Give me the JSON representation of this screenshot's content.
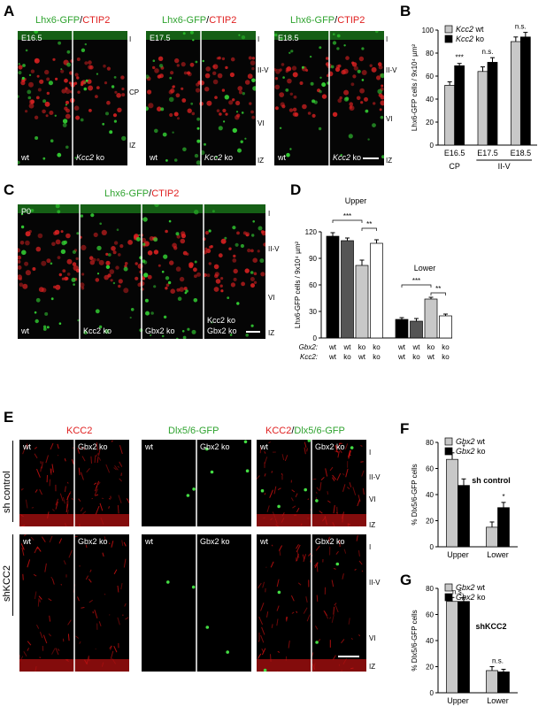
{
  "panel_letters": {
    "A": "A",
    "B": "B",
    "C": "C",
    "D": "D",
    "E": "E",
    "F": "F",
    "G": "G"
  },
  "panelA": {
    "title_green": "Lhx6-GFP",
    "title_sep": "/",
    "title_red": "CTIP2",
    "stages": [
      "E16.5",
      "E17.5",
      "E18.5"
    ],
    "wt": "wt",
    "ko_gene": "Kcc2",
    "ko_suffix": " ko",
    "layers_1": [
      "I",
      "CP",
      "IZ"
    ],
    "layers_2": [
      "I",
      "II-V",
      "VI",
      "IZ"
    ],
    "layers_3": [
      "I",
      "II-V",
      "VI",
      "IZ"
    ]
  },
  "panelC": {
    "title_green": "Lhx6-GFP",
    "title_sep": "/",
    "title_red": "CTIP2",
    "stage": "P0",
    "labels": [
      "wt",
      "Kcc2 ko",
      "Gbx2 ko",
      "Kcc2 ko",
      "Gbx2 ko"
    ],
    "layers": [
      "I",
      "II-V",
      "VI",
      "IZ"
    ]
  },
  "panelE": {
    "titles": [
      "KCC2",
      "Dlx5/6-GFP",
      "KCC2/Dlx5/6-GFP"
    ],
    "rows": [
      "sh control",
      "shKCC2"
    ],
    "wt": "wt",
    "ko": "Gbx2 ko",
    "layers": [
      "I",
      "II-V",
      "VI",
      "IZ"
    ]
  },
  "colors": {
    "green": "#2fa32f",
    "red": "#e02020",
    "bar_wt": "#c8c8c8",
    "bar_ko": "#000000"
  },
  "chart_data": [
    {
      "id": "B",
      "type": "bar",
      "ylabel": "Lhx6-GFP cells / 9x10⁴ µm²",
      "ylim": [
        0,
        100
      ],
      "yticks": [
        0,
        20,
        40,
        60,
        80,
        100
      ],
      "categories": [
        "E16.5",
        "E17.5",
        "E18.5"
      ],
      "groups": [
        {
          "label": "CP",
          "span": [
            0,
            0
          ]
        },
        {
          "label": "II-V",
          "span": [
            1,
            2
          ]
        }
      ],
      "legend": [
        "Kcc2 wt",
        "Kcc2 ko"
      ],
      "series": [
        {
          "name": "Kcc2 wt",
          "values": [
            52,
            64,
            90
          ],
          "errors": [
            3,
            4,
            4
          ]
        },
        {
          "name": "Kcc2 ko",
          "values": [
            69,
            72,
            94
          ],
          "errors": [
            2,
            4,
            4
          ]
        }
      ],
      "significance": [
        "***",
        "n.s.",
        "n.s."
      ]
    },
    {
      "id": "D",
      "type": "bar",
      "ylabel": "Lhx6-GFP cells / 9x10⁴ µm²",
      "ylim": [
        0,
        120
      ],
      "yticks": [
        0,
        30,
        60,
        90,
        120
      ],
      "groups": [
        "Upper",
        "Lower"
      ],
      "row_labels": [
        "Gbx2:",
        "Kcc2:"
      ],
      "gbx2": [
        "wt",
        "wt",
        "ko",
        "ko"
      ],
      "kcc2": [
        "wt",
        "ko",
        "wt",
        "ko"
      ],
      "bar_colors": [
        "#000000",
        "#555555",
        "#c8c8c8",
        "#ffffff"
      ],
      "upper": {
        "values": [
          115,
          110,
          82,
          107
        ],
        "errors": [
          4,
          3,
          6,
          4
        ]
      },
      "lower": {
        "values": [
          21,
          19,
          44,
          25
        ],
        "errors": [
          2,
          3,
          2,
          2
        ]
      },
      "significance": [
        "***",
        "**",
        "***",
        "**"
      ]
    },
    {
      "id": "F",
      "type": "bar",
      "ylabel": "% Dlx5/6-GFP cells",
      "ylim": [
        0,
        80
      ],
      "yticks": [
        0,
        20,
        40,
        60,
        80
      ],
      "categories": [
        "Upper",
        "Lower"
      ],
      "legend": [
        "Gbx2 wt",
        "Gbx2 ko"
      ],
      "annotation": "sh control",
      "series": [
        {
          "name": "Gbx2 wt",
          "values": [
            67,
            15
          ],
          "errors": [
            5,
            4
          ]
        },
        {
          "name": "Gbx2 ko",
          "values": [
            47,
            30
          ],
          "errors": [
            5,
            4
          ]
        }
      ],
      "significance": [
        "*",
        "*"
      ]
    },
    {
      "id": "G",
      "type": "bar",
      "ylabel": "% Dlx5/6-GFP cells",
      "ylim": [
        0,
        80
      ],
      "yticks": [
        0,
        20,
        40,
        60,
        80
      ],
      "categories": [
        "Upper",
        "Lower"
      ],
      "legend": [
        "Gbx2 wt",
        "Gbx2 ko"
      ],
      "annotation": "shKCC2",
      "series": [
        {
          "name": "Gbx2 wt",
          "values": [
            70,
            17
          ],
          "errors": [
            3,
            3
          ]
        },
        {
          "name": "Gbx2 ko",
          "values": [
            70,
            16
          ],
          "errors": [
            3,
            2
          ]
        }
      ],
      "significance": [
        "n.s.",
        "n.s."
      ]
    }
  ]
}
